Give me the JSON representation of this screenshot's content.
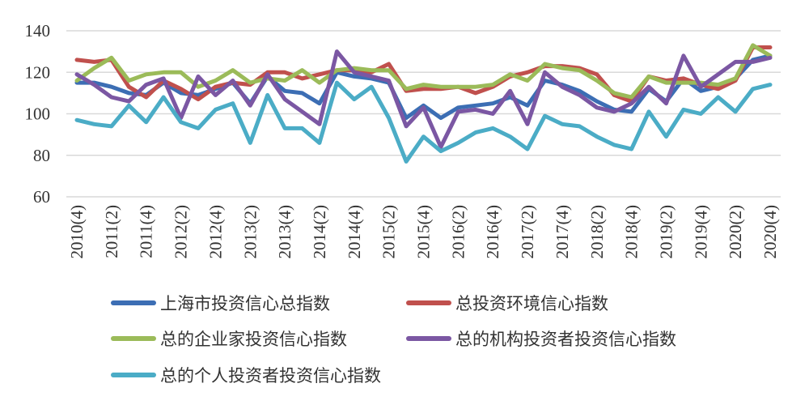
{
  "chart_data": {
    "type": "line",
    "title": "",
    "xlabel": "",
    "ylabel": "",
    "ylim": [
      60,
      140
    ],
    "yticks": [
      60,
      80,
      100,
      120,
      140
    ],
    "grid": true,
    "legend_position": "bottom",
    "x": [
      "2010(4)",
      "2011(1)",
      "2011(2)",
      "2011(3)",
      "2011(4)",
      "2012(1)",
      "2012(2)",
      "2012(3)",
      "2012(4)",
      "2013(1)",
      "2013(2)",
      "2013(3)",
      "2013(4)",
      "2014(1)",
      "2014(2)",
      "2014(3)",
      "2014(4)",
      "2015(1)",
      "2015(2)",
      "2015(3)",
      "2015(4)",
      "2016(1)",
      "2016(2)",
      "2016(3)",
      "2016(4)",
      "2017(1)",
      "2017(2)",
      "2017(3)",
      "2017(4)",
      "2018(1)",
      "2018(2)",
      "2018(3)",
      "2018(4)",
      "2019(1)",
      "2019(2)",
      "2019(3)",
      "2019(4)",
      "2020(1)",
      "2020(2)",
      "2020(3)",
      "2020(4)"
    ],
    "x_tick_labels": [
      "2010(4)",
      "2011(2)",
      "2011(4)",
      "2012(2)",
      "2012(4)",
      "2013(2)",
      "2013(4)",
      "2014(2)",
      "2014(4)",
      "2015(2)",
      "2015(4)",
      "2016(2)",
      "2016(4)",
      "2017(2)",
      "2017(4)",
      "2018(2)",
      "2018(4)",
      "2019(2)",
      "2019(4)",
      "2020(2)",
      "2020(4)"
    ],
    "series": [
      {
        "name": "上海市投资信心总指数",
        "color": "#3c6eb4",
        "values": [
          115,
          115,
          113,
          110,
          109,
          115,
          110,
          109,
          112,
          115,
          105,
          118,
          111,
          110,
          105,
          120,
          118,
          117,
          115,
          98,
          104,
          98,
          103,
          104,
          105,
          108,
          104,
          116,
          114,
          111,
          106,
          102,
          101,
          112,
          106,
          117,
          111,
          113,
          117,
          126,
          128
        ]
      },
      {
        "name": "总投资环境信心指数",
        "color": "#c0504d",
        "values": [
          126,
          125,
          126,
          113,
          108,
          116,
          112,
          107,
          113,
          115,
          114,
          120,
          120,
          117,
          119,
          121,
          121,
          120,
          124,
          111,
          112,
          112,
          113,
          110,
          113,
          118,
          120,
          123,
          123,
          122,
          119,
          109,
          106,
          118,
          116,
          117,
          114,
          112,
          116,
          132,
          132
        ]
      },
      {
        "name": "总的企业家投资信心指数",
        "color": "#9bbb59",
        "values": [
          116,
          122,
          127,
          116,
          119,
          120,
          120,
          113,
          116,
          121,
          115,
          117,
          116,
          121,
          115,
          121,
          122,
          121,
          121,
          112,
          114,
          113,
          113,
          113,
          114,
          119,
          116,
          124,
          122,
          121,
          116,
          110,
          108,
          118,
          115,
          115,
          115,
          114,
          117,
          133,
          128
        ]
      },
      {
        "name": "总的机构投资者投资信心指数",
        "color": "#7b57a3",
        "values": [
          119,
          114,
          108,
          106,
          114,
          117,
          98,
          118,
          109,
          116,
          104,
          119,
          107,
          101,
          95,
          130,
          120,
          118,
          116,
          94,
          103,
          84,
          101,
          102,
          100,
          111,
          95,
          120,
          113,
          109,
          103,
          101,
          105,
          113,
          105,
          128,
          113,
          119,
          125,
          125,
          127
        ]
      },
      {
        "name": "总的个人投资者投资信心指数",
        "color": "#4bacc6",
        "values": [
          97,
          95,
          94,
          104,
          96,
          108,
          96,
          93,
          102,
          105,
          86,
          109,
          93,
          93,
          86,
          115,
          107,
          113,
          98,
          77,
          89,
          82,
          86,
          91,
          93,
          89,
          83,
          99,
          95,
          94,
          89,
          85,
          83,
          101,
          89,
          102,
          100,
          108,
          101,
          112,
          114
        ]
      }
    ]
  }
}
